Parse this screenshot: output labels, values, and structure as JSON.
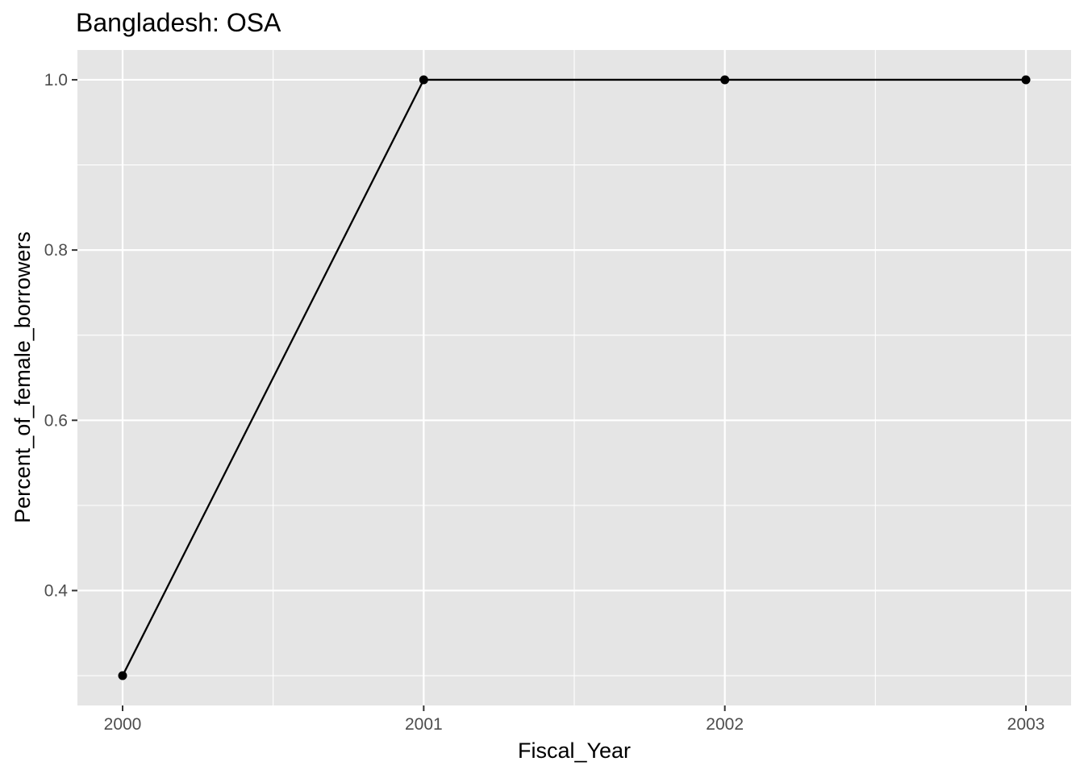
{
  "chart_data": {
    "type": "line",
    "title": "Bangladesh:  OSA",
    "xlabel": "Fiscal_Year",
    "ylabel": "Percent_of_female_borrowers",
    "x": [
      2000,
      2001,
      2002,
      2003
    ],
    "series": [
      {
        "values": [
          0.3,
          1.0,
          1.0,
          1.0
        ]
      }
    ],
    "x_ticks": [
      "2000",
      "2001",
      "2002",
      "2003"
    ],
    "y_ticks": [
      "0.4",
      "0.6",
      "0.8",
      "1.0"
    ],
    "xlim": [
      1999.85,
      2003.15
    ],
    "ylim": [
      0.265,
      1.035
    ],
    "grid": true,
    "colors": {
      "panel": "#e5e5e5",
      "grid": "#ffffff",
      "line": "#000000",
      "tick": "#4d4d4d"
    }
  }
}
